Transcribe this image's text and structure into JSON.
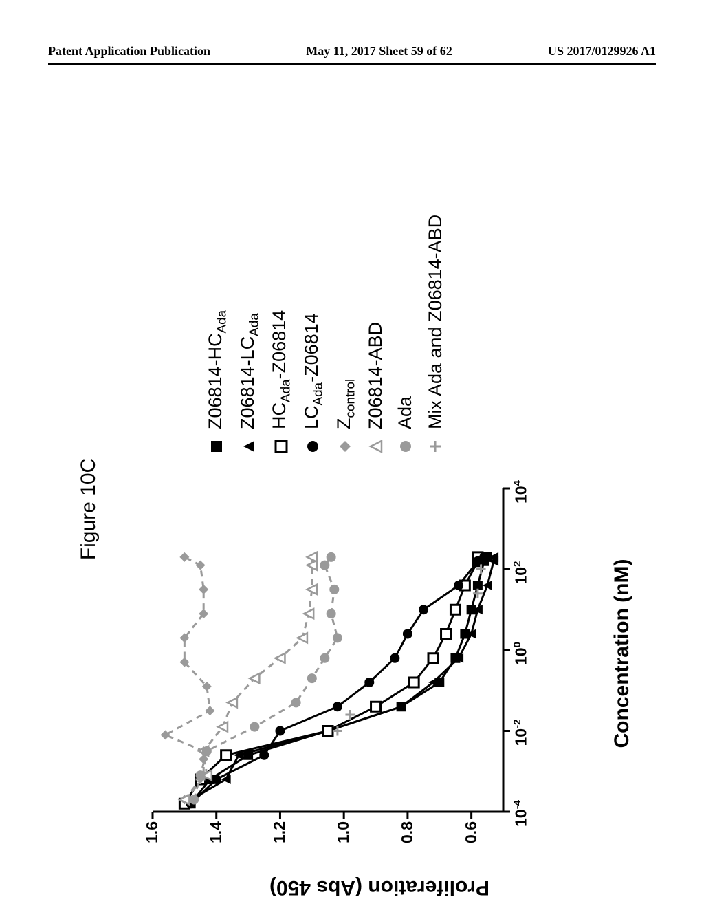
{
  "header": {
    "left": "Patent Application Publication",
    "center": "May 11, 2017  Sheet 59 of 62",
    "right": "US 2017/0129926 A1"
  },
  "figure": {
    "title": "Figure 10C",
    "ylabel": "Proliferation (Abs 450)",
    "xlabel": "Concentration (nM)",
    "xlim": [
      -4,
      4
    ],
    "ylim": [
      0.5,
      1.6
    ],
    "xticks": [
      -4,
      -2,
      0,
      2,
      4
    ],
    "yticks": [
      0.6,
      0.8,
      1.0,
      1.2,
      1.4,
      1.6
    ],
    "axis_color": "#000000",
    "axis_width": 3,
    "tick_len": 10,
    "series": [
      {
        "name": "Z06814-HC_Ada",
        "label_html": "Z06814-HC<sub class='sub'>Ada</sub>",
        "marker": "square-filled",
        "color": "#000000",
        "dash": "solid",
        "data": [
          [
            -3.8,
            1.48
          ],
          [
            -3.2,
            1.42
          ],
          [
            -2.6,
            1.3
          ],
          [
            -2.0,
            1.05
          ],
          [
            -1.4,
            0.82
          ],
          [
            -0.8,
            0.7
          ],
          [
            -0.2,
            0.65
          ],
          [
            0.4,
            0.62
          ],
          [
            1.0,
            0.6
          ],
          [
            1.6,
            0.58
          ],
          [
            2.2,
            0.56
          ],
          [
            2.3,
            0.55
          ]
        ]
      },
      {
        "name": "Z06814-LC_Ada",
        "label_html": "Z06814-LC<sub class='sub'>Ada</sub>",
        "marker": "triangle-filled",
        "color": "#000000",
        "dash": "solid",
        "data": [
          [
            -3.8,
            1.5
          ],
          [
            -3.2,
            1.37
          ],
          [
            -2.6,
            1.33
          ],
          [
            -2.0,
            1.05
          ],
          [
            -1.4,
            0.82
          ],
          [
            -0.8,
            0.72
          ],
          [
            -0.2,
            0.64
          ],
          [
            0.4,
            0.6
          ],
          [
            1.0,
            0.58
          ],
          [
            1.6,
            0.55
          ],
          [
            2.2,
            0.53
          ],
          [
            2.3,
            0.53
          ]
        ]
      },
      {
        "name": "HC_Ada-Z06814",
        "label_html": "HC<sub class='sub'>Ada</sub>-Z06814",
        "marker": "square-open",
        "color": "#000000",
        "dash": "solid",
        "data": [
          [
            -3.8,
            1.5
          ],
          [
            -3.2,
            1.45
          ],
          [
            -2.6,
            1.37
          ],
          [
            -2.0,
            1.05
          ],
          [
            -1.4,
            0.9
          ],
          [
            -0.8,
            0.78
          ],
          [
            -0.2,
            0.72
          ],
          [
            0.4,
            0.68
          ],
          [
            1.0,
            0.65
          ],
          [
            1.6,
            0.62
          ],
          [
            2.2,
            0.58
          ],
          [
            2.3,
            0.58
          ]
        ]
      },
      {
        "name": "LC_Ada-Z06814",
        "label_html": "LC<sub class='sub'>Ada</sub>-Z06814",
        "marker": "circle-filled",
        "color": "#000000",
        "dash": "solid",
        "data": [
          [
            -3.8,
            1.48
          ],
          [
            -3.2,
            1.4
          ],
          [
            -2.6,
            1.25
          ],
          [
            -2.0,
            1.2
          ],
          [
            -1.4,
            1.02
          ],
          [
            -0.8,
            0.92
          ],
          [
            -0.2,
            0.84
          ],
          [
            0.4,
            0.8
          ],
          [
            1.0,
            0.75
          ],
          [
            1.6,
            0.64
          ],
          [
            2.2,
            0.58
          ],
          [
            2.3,
            0.56
          ]
        ]
      },
      {
        "name": "Z_control",
        "label_html": "Z<sub class='sub'>control</sub>",
        "marker": "diamond-filled",
        "color": "#9a9a9a",
        "dash": "dashed",
        "data": [
          [
            -3.7,
            1.5
          ],
          [
            -3.1,
            1.44
          ],
          [
            -2.7,
            1.44
          ],
          [
            -2.5,
            1.44
          ],
          [
            -2.1,
            1.56
          ],
          [
            -1.5,
            1.42
          ],
          [
            -0.9,
            1.43
          ],
          [
            -0.3,
            1.5
          ],
          [
            0.3,
            1.5
          ],
          [
            0.9,
            1.44
          ],
          [
            1.5,
            1.44
          ],
          [
            2.1,
            1.45
          ],
          [
            2.3,
            1.5
          ]
        ]
      },
      {
        "name": "Z06814-ABD",
        "label_html": "Z06814-ABD",
        "marker": "triangle-open",
        "color": "#9a9a9a",
        "dash": "dashed",
        "data": [
          [
            -3.7,
            1.5
          ],
          [
            -3.1,
            1.43
          ],
          [
            -2.5,
            1.44
          ],
          [
            -1.9,
            1.38
          ],
          [
            -1.3,
            1.35
          ],
          [
            -0.7,
            1.28
          ],
          [
            -0.2,
            1.2
          ],
          [
            0.3,
            1.13
          ],
          [
            0.9,
            1.11
          ],
          [
            1.5,
            1.1
          ],
          [
            2.1,
            1.1
          ],
          [
            2.3,
            1.1
          ]
        ]
      },
      {
        "name": "Ada",
        "label_html": "Ada",
        "marker": "circle-gray",
        "color": "#9a9a9a",
        "dash": "dashed",
        "data": [
          [
            -3.7,
            1.47
          ],
          [
            -3.1,
            1.45
          ],
          [
            -2.5,
            1.43
          ],
          [
            -1.9,
            1.28
          ],
          [
            -1.3,
            1.15
          ],
          [
            -0.7,
            1.1
          ],
          [
            -0.2,
            1.06
          ],
          [
            0.3,
            1.02
          ],
          [
            0.9,
            1.04
          ],
          [
            1.5,
            1.03
          ],
          [
            2.1,
            1.06
          ],
          [
            2.3,
            1.04
          ]
        ]
      },
      {
        "name": "Mix Ada and Z06814-ABD",
        "label_html": "Mix Ada and Z06814-ABD",
        "marker": "plus-gray",
        "color": "#9a9a9a",
        "dash": "none",
        "data": [
          [
            -3.7,
            1.47
          ],
          [
            -3.2,
            1.45
          ],
          [
            -2.0,
            1.02
          ],
          [
            -1.6,
            0.98
          ],
          [
            1.4,
            0.58
          ],
          [
            2.0,
            0.57
          ]
        ]
      }
    ]
  }
}
